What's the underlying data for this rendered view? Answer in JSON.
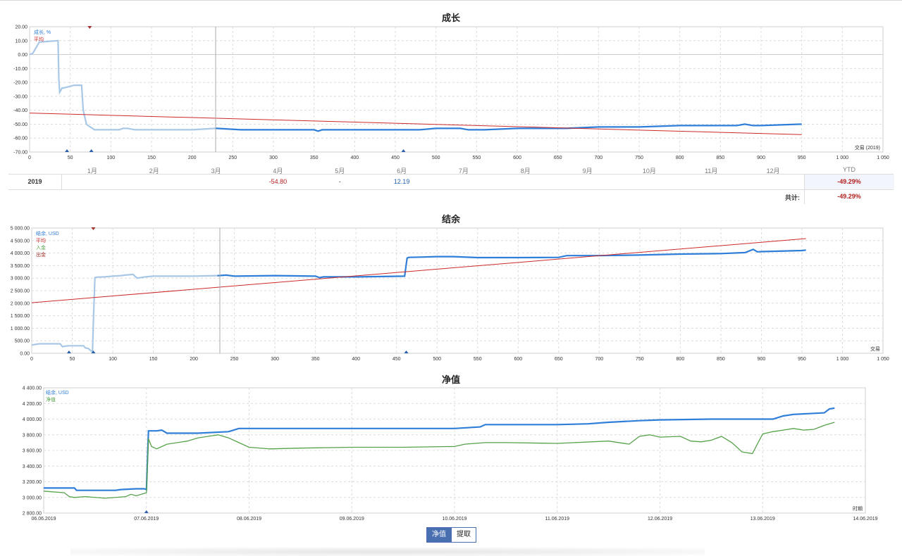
{
  "chart_data": [
    {
      "type": "line",
      "title": "成长",
      "xlabel": "交易 (2019)",
      "ylabel": "",
      "xlim": [
        0,
        1050
      ],
      "ylim": [
        -70,
        20
      ],
      "x_ticks": [
        "0",
        "50",
        "100",
        "150",
        "200",
        "250",
        "300",
        "350",
        "400",
        "450",
        "500",
        "550",
        "600",
        "650",
        "700",
        "750",
        "800",
        "850",
        "900",
        "950",
        "1 000",
        "1 050"
      ],
      "y_ticks": [
        "20.00",
        "10.00",
        "0.00",
        "-10.00",
        "-20.00",
        "-30.00",
        "-40.00",
        "-50.00",
        "-60.00",
        "-70.00"
      ],
      "legend": [
        "成长, %",
        "平均"
      ],
      "legend_colors": [
        "#2f7ed8",
        "#cc2a2a"
      ],
      "series": [
        {
          "name": "成长, %",
          "color": "#2f7ed8",
          "x": [
            0,
            4,
            8,
            12,
            35,
            36,
            37,
            40,
            42,
            55,
            64,
            66,
            70,
            72,
            80,
            95,
            100,
            110,
            115,
            120,
            130,
            150,
            200,
            229,
            230,
            260,
            300,
            350,
            355,
            360,
            380,
            400,
            450,
            460,
            480,
            500,
            530,
            540,
            550,
            560,
            600,
            620,
            650,
            660,
            700,
            750,
            800,
            850,
            870,
            880,
            890,
            900,
            950
          ],
          "y": [
            0,
            1,
            5,
            9,
            10,
            -18,
            -27,
            -24,
            -24,
            -22,
            -22,
            -40,
            -50,
            -51,
            -54,
            -54,
            -54,
            -54,
            -53,
            -53,
            -54,
            -54,
            -54,
            -53,
            -53,
            -54,
            -54,
            -54,
            -55,
            -54,
            -54,
            -54,
            -54,
            -54,
            -54,
            -53,
            -53,
            -54,
            -54,
            -54,
            -53,
            -53,
            -53,
            -53,
            -52,
            -52,
            -51,
            -51,
            -51,
            -50,
            -51,
            -51,
            -50
          ]
        },
        {
          "name": "平均",
          "color": "#cc2a2a",
          "x": [
            0,
            950
          ],
          "y": [
            -42,
            -57.5
          ]
        }
      ],
      "markers": {
        "deposit_x": [
          46,
          76,
          460
        ],
        "withdrawal_x": [
          74
        ]
      },
      "months": [
        "1月",
        "2月",
        "3月",
        "4月",
        "5月",
        "6月",
        "7月",
        "8月",
        "9月",
        "10月",
        "11月",
        "12月"
      ],
      "ytd_label": "YTD",
      "rows": [
        {
          "year": "2019",
          "values": [
            "",
            "",
            "",
            "-54.80",
            "-",
            "12.19",
            "",
            "",
            "",
            "",
            "",
            ""
          ],
          "ytd": "-49.29%"
        }
      ],
      "total_label": "共计:",
      "total_value": "-49.29%"
    },
    {
      "type": "line",
      "title": "结余",
      "xlabel": "交易",
      "ylabel": "",
      "xlim": [
        0,
        1050
      ],
      "ylim": [
        0,
        5000
      ],
      "x_ticks": [
        "0",
        "50",
        "100",
        "150",
        "200",
        "250",
        "300",
        "350",
        "400",
        "450",
        "500",
        "550",
        "600",
        "650",
        "700",
        "750",
        "800",
        "850",
        "900",
        "950",
        "1 000",
        "1 050"
      ],
      "y_ticks": [
        "5 000.00",
        "4 500.00",
        "4 000.00",
        "3 500.00",
        "3 000.00",
        "2 500.00",
        "2 000.00",
        "1 500.00",
        "1 000.00",
        "500.00",
        "0.00"
      ],
      "legend": [
        "结余, USD",
        "平均",
        "入金",
        "出金"
      ],
      "legend_colors": [
        "#2f7ed8",
        "#cc2a2a",
        "#56a24a",
        "#a0312a"
      ],
      "series": [
        {
          "name": "结余, USD",
          "color": "#2f7ed8",
          "x": [
            0,
            5,
            10,
            35,
            38,
            40,
            46,
            55,
            64,
            66,
            70,
            72,
            75,
            76,
            78,
            80,
            90,
            100,
            110,
            115,
            125,
            130,
            140,
            150,
            200,
            229,
            230,
            240,
            250,
            300,
            350,
            355,
            360,
            400,
            460,
            463,
            465,
            480,
            500,
            520,
            550,
            580,
            600,
            650,
            660,
            700,
            750,
            800,
            850,
            880,
            890,
            895,
            900,
            950,
            955
          ],
          "y": [
            330,
            360,
            380,
            380,
            260,
            280,
            300,
            300,
            300,
            220,
            190,
            130,
            60,
            1200,
            3020,
            3040,
            3050,
            3080,
            3100,
            3120,
            3150,
            3000,
            3050,
            3080,
            3080,
            3100,
            3100,
            3120,
            3080,
            3100,
            3080,
            3020,
            3050,
            3050,
            3080,
            3800,
            3830,
            3840,
            3860,
            3860,
            3820,
            3820,
            3820,
            3830,
            3900,
            3900,
            3920,
            3960,
            3980,
            4020,
            4150,
            4050,
            4060,
            4100,
            4120
          ]
        },
        {
          "name": "平均",
          "color": "#cc2a2a",
          "x": [
            0,
            955
          ],
          "y": [
            2020,
            4580
          ]
        }
      ],
      "markers": {
        "deposit_x": [
          46,
          76,
          462
        ],
        "withdrawal_x": [
          76
        ]
      }
    },
    {
      "type": "line",
      "title": "净值",
      "xlabel": "时期",
      "ylabel": "",
      "xlim": [
        0,
        8
      ],
      "ylim": [
        2800,
        4400
      ],
      "x_ticks": [
        "06.06.2019",
        "07.06.2019",
        "08.06.2019",
        "09.06.2019",
        "10.06.2019",
        "11.06.2019",
        "12.06.2019",
        "13.06.2019",
        "14.06.2019"
      ],
      "y_ticks": [
        "4 400.00",
        "4 200.00",
        "4 000.00",
        "3 800.00",
        "3 600.00",
        "3 400.00",
        "3 200.00",
        "3 000.00",
        "2 800.00"
      ],
      "legend": [
        "结余, USD",
        "净值"
      ],
      "legend_colors": [
        "#2f7ed8",
        "#56a24a"
      ],
      "series": [
        {
          "name": "结余, USD",
          "color": "#2f7ed8",
          "x": [
            0,
            0.3,
            0.32,
            0.7,
            0.75,
            0.9,
            0.98,
            1.0,
            1.02,
            1.04,
            1.1,
            1.15,
            1.2,
            1.28,
            1.3,
            1.5,
            1.8,
            1.9,
            2.0,
            2.5,
            3.0,
            4.0,
            4.25,
            4.3,
            5.0,
            5.3,
            5.5,
            5.8,
            6.0,
            6.5,
            6.6,
            7.1,
            7.2,
            7.3,
            7.6,
            7.65,
            7.7
          ],
          "y": [
            3120,
            3120,
            3090,
            3090,
            3100,
            3110,
            3110,
            3100,
            3850,
            3850,
            3850,
            3860,
            3820,
            3820,
            3820,
            3820,
            3840,
            3880,
            3880,
            3880,
            3880,
            3880,
            3900,
            3930,
            3930,
            3940,
            3960,
            3980,
            3990,
            4000,
            4000,
            4000,
            4040,
            4060,
            4080,
            4130,
            4140
          ]
        },
        {
          "name": "净值",
          "color": "#56a24a",
          "x": [
            0,
            0.2,
            0.25,
            0.3,
            0.4,
            0.6,
            0.8,
            0.85,
            0.9,
            1.0,
            1.02,
            1.05,
            1.1,
            1.2,
            1.4,
            1.5,
            1.6,
            1.7,
            1.8,
            1.9,
            2.0,
            2.2,
            2.5,
            3.0,
            3.5,
            4.0,
            4.1,
            4.3,
            4.5,
            5.0,
            5.5,
            5.7,
            5.8,
            5.9,
            6.0,
            6.2,
            6.3,
            6.4,
            6.5,
            6.6,
            6.7,
            6.8,
            6.9,
            7.0,
            7.1,
            7.2,
            7.3,
            7.4,
            7.5,
            7.6,
            7.7
          ],
          "y": [
            3080,
            3060,
            3010,
            3000,
            3010,
            2990,
            3010,
            3040,
            3020,
            3060,
            3750,
            3650,
            3620,
            3680,
            3720,
            3760,
            3780,
            3800,
            3760,
            3700,
            3640,
            3620,
            3630,
            3640,
            3640,
            3650,
            3680,
            3700,
            3700,
            3690,
            3720,
            3680,
            3780,
            3800,
            3770,
            3780,
            3720,
            3710,
            3730,
            3780,
            3700,
            3580,
            3560,
            3810,
            3840,
            3860,
            3880,
            3860,
            3870,
            3920,
            3960
          ]
        }
      ],
      "markers": {
        "deposit_x": [
          1.0
        ]
      },
      "toggle": [
        "净值",
        "提取"
      ]
    }
  ]
}
